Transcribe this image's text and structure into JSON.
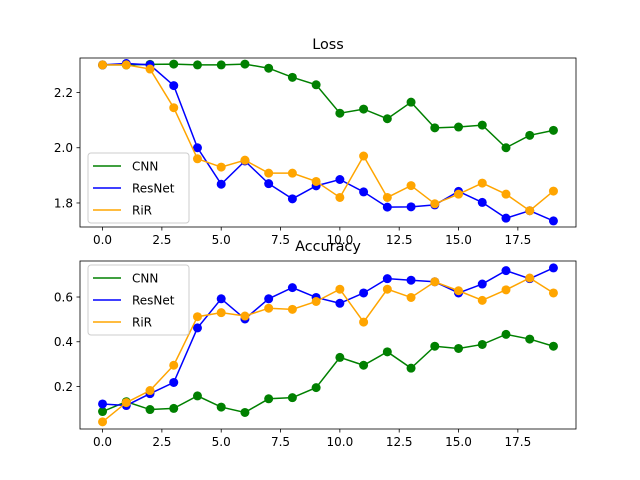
{
  "chart_data": [
    {
      "type": "line",
      "title": "Loss",
      "xlabel": "",
      "ylabel": "",
      "xlim": [
        -0.95,
        19.95
      ],
      "ylim": [
        1.713,
        2.325
      ],
      "xticks": [
        0,
        2.5,
        5,
        7.5,
        10,
        12.5,
        15,
        17.5
      ],
      "xtick_labels": [
        "0.0",
        "2.5",
        "5.0",
        "7.5",
        "10.0",
        "12.5",
        "15.0",
        "17.5"
      ],
      "yticks": [
        1.8,
        2.0,
        2.2
      ],
      "ytick_labels": [
        "1.8",
        "2.0",
        "2.2"
      ],
      "legend_position": "lower-left",
      "grid": false,
      "x": [
        0,
        1,
        2,
        3,
        4,
        5,
        6,
        7,
        8,
        9,
        10,
        11,
        12,
        13,
        14,
        15,
        16,
        17,
        18,
        19
      ],
      "series": [
        {
          "name": "CNN",
          "color": "#008000",
          "values": [
            2.3,
            2.3,
            2.302,
            2.303,
            2.3,
            2.3,
            2.303,
            2.288,
            2.255,
            2.228,
            2.125,
            2.14,
            2.105,
            2.165,
            2.072,
            2.075,
            2.082,
            2.0,
            2.045,
            2.063
          ]
        },
        {
          "name": "ResNet",
          "color": "#0000ff",
          "values": [
            2.3,
            2.305,
            2.3,
            2.225,
            2.0,
            1.868,
            1.952,
            1.87,
            1.815,
            1.862,
            1.885,
            1.84,
            1.785,
            1.786,
            1.793,
            1.842,
            1.802,
            1.745,
            1.772,
            1.735
          ]
        },
        {
          "name": "RiR",
          "color": "#ffa500",
          "values": [
            2.3,
            2.3,
            2.285,
            2.145,
            1.96,
            1.93,
            1.955,
            1.908,
            1.908,
            1.878,
            1.82,
            1.97,
            1.82,
            1.863,
            1.797,
            1.832,
            1.872,
            1.832,
            1.772,
            1.843
          ]
        }
      ]
    },
    {
      "type": "line",
      "title": "Accuracy",
      "xlabel": "",
      "ylabel": "",
      "xlim": [
        -0.95,
        19.95
      ],
      "ylim": [
        0.01,
        0.761
      ],
      "xticks": [
        0,
        2.5,
        5,
        7.5,
        10,
        12.5,
        15,
        17.5
      ],
      "xtick_labels": [
        "0.0",
        "2.5",
        "5.0",
        "7.5",
        "10.0",
        "12.5",
        "15.0",
        "17.5"
      ],
      "yticks": [
        0.2,
        0.4,
        0.6
      ],
      "ytick_labels": [
        "0.2",
        "0.4",
        "0.6"
      ],
      "legend_position": "upper-left",
      "grid": false,
      "x": [
        0,
        1,
        2,
        3,
        4,
        5,
        6,
        7,
        8,
        9,
        10,
        11,
        12,
        13,
        14,
        15,
        16,
        17,
        18,
        19
      ],
      "series": [
        {
          "name": "CNN",
          "color": "#008000",
          "values": [
            0.088,
            0.132,
            0.097,
            0.102,
            0.158,
            0.108,
            0.084,
            0.145,
            0.15,
            0.195,
            0.33,
            0.295,
            0.355,
            0.282,
            0.38,
            0.37,
            0.388,
            0.433,
            0.412,
            0.38
          ]
        },
        {
          "name": "ResNet",
          "color": "#0000ff",
          "values": [
            0.122,
            0.115,
            0.168,
            0.218,
            0.462,
            0.592,
            0.502,
            0.592,
            0.642,
            0.598,
            0.572,
            0.618,
            0.682,
            0.675,
            0.668,
            0.618,
            0.658,
            0.718,
            0.682,
            0.73
          ]
        },
        {
          "name": "RiR",
          "color": "#ffa500",
          "values": [
            0.042,
            0.128,
            0.182,
            0.295,
            0.512,
            0.53,
            0.515,
            0.55,
            0.545,
            0.58,
            0.635,
            0.488,
            0.635,
            0.598,
            0.668,
            0.628,
            0.585,
            0.632,
            0.685,
            0.618
          ]
        }
      ]
    }
  ]
}
